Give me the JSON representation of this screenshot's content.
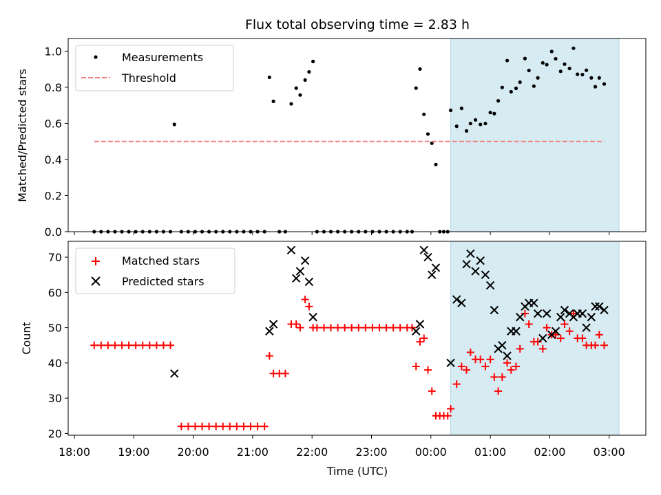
{
  "chart_data": [
    {
      "type": "scatter",
      "title": "Flux total observing time = 2.83 h",
      "xlabel": "",
      "ylabel": "Matched/Predicted stars",
      "xlim": [
        "18:00",
        "03:30"
      ],
      "ylim": [
        0,
        1.07
      ],
      "y_ticks": [
        "0.0",
        "0.2",
        "0.4",
        "0.6",
        "0.8",
        "1.0"
      ],
      "x_ticks": [
        "18:00",
        "19:00",
        "20:00",
        "21:00",
        "22:00",
        "23:00",
        "00:00",
        "01:00",
        "02:00",
        "03:00"
      ],
      "shaded_region": {
        "x_start": "00:20",
        "x_end": "03:10",
        "color": "#add8e6"
      },
      "grid": false,
      "legend": {
        "position": "top-left",
        "entries": [
          {
            "label": "Measurements",
            "marker": "dot",
            "color": "#000000"
          },
          {
            "label": "Threshold",
            "marker": "dashed-line",
            "color": "#f08080"
          }
        ]
      },
      "series": [
        {
          "name": "Measurements",
          "marker": "dot",
          "color": "#000000",
          "points": [
            [
              "18:20",
              0
            ],
            [
              "18:27",
              0
            ],
            [
              "18:34",
              0
            ],
            [
              "18:41",
              0
            ],
            [
              "18:48",
              0
            ],
            [
              "18:55",
              0
            ],
            [
              "19:02",
              0
            ],
            [
              "19:09",
              0
            ],
            [
              "19:16",
              0
            ],
            [
              "19:23",
              0
            ],
            [
              "19:30",
              0
            ],
            [
              "19:37",
              0
            ],
            [
              "19:41",
              0.594
            ],
            [
              "19:48",
              0
            ],
            [
              "19:55",
              0
            ],
            [
              "20:02",
              0
            ],
            [
              "20:09",
              0
            ],
            [
              "20:16",
              0
            ],
            [
              "20:23",
              0
            ],
            [
              "20:30",
              0
            ],
            [
              "20:37",
              0
            ],
            [
              "20:44",
              0
            ],
            [
              "20:51",
              0
            ],
            [
              "20:58",
              0
            ],
            [
              "21:05",
              0
            ],
            [
              "21:12",
              0
            ],
            [
              "21:17",
              0.855
            ],
            [
              "21:21",
              0.722
            ],
            [
              "21:27",
              0
            ],
            [
              "21:33",
              0
            ],
            [
              "21:39",
              0.708
            ],
            [
              "21:44",
              0.795
            ],
            [
              "21:48",
              0.757
            ],
            [
              "21:53",
              0.84
            ],
            [
              "21:57",
              0.885
            ],
            [
              "22:01",
              0.943
            ],
            [
              "22:05",
              0
            ],
            [
              "22:12",
              0
            ],
            [
              "22:19",
              0
            ],
            [
              "22:26",
              0
            ],
            [
              "22:33",
              0
            ],
            [
              "22:40",
              0
            ],
            [
              "22:47",
              0
            ],
            [
              "22:54",
              0
            ],
            [
              "23:01",
              0
            ],
            [
              "23:08",
              0
            ],
            [
              "23:15",
              0
            ],
            [
              "23:22",
              0
            ],
            [
              "23:29",
              0
            ],
            [
              "23:36",
              0
            ],
            [
              "23:41",
              0
            ],
            [
              "23:45",
              0.795
            ],
            [
              "23:49",
              0.901
            ],
            [
              "23:53",
              0.65
            ],
            [
              "23:57",
              0.541
            ],
            [
              "00:01",
              0.49
            ],
            [
              "00:05",
              0.372
            ],
            [
              "00:09",
              0
            ],
            [
              "00:13",
              0
            ],
            [
              "00:17",
              0
            ],
            [
              "00:20",
              0.672
            ],
            [
              "00:26",
              0.584
            ],
            [
              "00:31",
              0.683
            ],
            [
              "00:36",
              0.558
            ],
            [
              "00:40",
              0.599
            ],
            [
              "00:45",
              0.619
            ],
            [
              "00:50",
              0.594
            ],
            [
              "00:55",
              0.599
            ],
            [
              "01:00",
              0.66
            ],
            [
              "01:04",
              0.654
            ],
            [
              "01:08",
              0.725
            ],
            [
              "01:12",
              0.799
            ],
            [
              "01:17",
              0.948
            ],
            [
              "01:21",
              0.775
            ],
            [
              "01:26",
              0.794
            ],
            [
              "01:30",
              0.828
            ],
            [
              "01:35",
              0.959
            ],
            [
              "01:39",
              0.893
            ],
            [
              "01:44",
              0.806
            ],
            [
              "01:48",
              0.852
            ],
            [
              "01:53",
              0.935
            ],
            [
              "01:57",
              0.925
            ],
            [
              "02:02",
              0.998
            ],
            [
              "02:06",
              0.958
            ],
            [
              "02:11",
              0.888
            ],
            [
              "02:15",
              0.928
            ],
            [
              "02:20",
              0.904
            ],
            [
              "02:24",
              1.016
            ],
            [
              "02:28",
              0.872
            ],
            [
              "02:33",
              0.87
            ],
            [
              "02:37",
              0.894
            ],
            [
              "02:42",
              0.852
            ],
            [
              "02:46",
              0.803
            ],
            [
              "02:50",
              0.852
            ],
            [
              "02:55",
              0.818
            ]
          ]
        },
        {
          "name": "Threshold",
          "marker": "dashed-line",
          "color": "#f08080",
          "points": [
            [
              "18:20",
              0.5
            ],
            [
              "02:55",
              0.5
            ]
          ]
        }
      ]
    },
    {
      "type": "scatter",
      "title": "",
      "xlabel": "Time (UTC)",
      "ylabel": "Count",
      "xlim": [
        "18:00",
        "03:30"
      ],
      "ylim": [
        19.5,
        74.5
      ],
      "y_ticks": [
        "20",
        "30",
        "40",
        "50",
        "60",
        "70"
      ],
      "x_ticks": [
        "18:00",
        "19:00",
        "20:00",
        "21:00",
        "22:00",
        "23:00",
        "00:00",
        "01:00",
        "02:00",
        "03:00"
      ],
      "shaded_region": {
        "x_start": "00:20",
        "x_end": "03:10",
        "color": "#add8e6"
      },
      "grid": false,
      "legend": {
        "position": "top-left",
        "entries": [
          {
            "label": "Matched stars",
            "marker": "plus",
            "color": "#ff0000"
          },
          {
            "label": "Predicted stars",
            "marker": "x",
            "color": "#000000"
          }
        ]
      },
      "series": [
        {
          "name": "Matched stars",
          "marker": "plus",
          "color": "#ff0000",
          "points": [
            [
              "18:20",
              45
            ],
            [
              "18:27",
              45
            ],
            [
              "18:34",
              45
            ],
            [
              "18:41",
              45
            ],
            [
              "18:48",
              45
            ],
            [
              "18:55",
              45
            ],
            [
              "19:02",
              45
            ],
            [
              "19:09",
              45
            ],
            [
              "19:16",
              45
            ],
            [
              "19:23",
              45
            ],
            [
              "19:30",
              45
            ],
            [
              "19:37",
              45
            ],
            [
              "19:48",
              22
            ],
            [
              "19:55",
              22
            ],
            [
              "20:02",
              22
            ],
            [
              "20:09",
              22
            ],
            [
              "20:16",
              22
            ],
            [
              "20:23",
              22
            ],
            [
              "20:30",
              22
            ],
            [
              "20:37",
              22
            ],
            [
              "20:44",
              22
            ],
            [
              "20:51",
              22
            ],
            [
              "20:58",
              22
            ],
            [
              "21:05",
              22
            ],
            [
              "21:12",
              22
            ],
            [
              "21:17",
              42
            ],
            [
              "21:21",
              37
            ],
            [
              "21:27",
              37
            ],
            [
              "21:33",
              37
            ],
            [
              "21:39",
              51
            ],
            [
              "21:44",
              51
            ],
            [
              "21:48",
              50
            ],
            [
              "21:53",
              58
            ],
            [
              "21:57",
              56
            ],
            [
              "22:01",
              50
            ],
            [
              "22:05",
              50
            ],
            [
              "22:12",
              50
            ],
            [
              "22:19",
              50
            ],
            [
              "22:26",
              50
            ],
            [
              "22:33",
              50
            ],
            [
              "22:40",
              50
            ],
            [
              "22:47",
              50
            ],
            [
              "22:54",
              50
            ],
            [
              "23:01",
              50
            ],
            [
              "23:08",
              50
            ],
            [
              "23:15",
              50
            ],
            [
              "23:22",
              50
            ],
            [
              "23:29",
              50
            ],
            [
              "23:36",
              50
            ],
            [
              "23:41",
              50
            ],
            [
              "23:45",
              39
            ],
            [
              "23:49",
              46
            ],
            [
              "23:53",
              47
            ],
            [
              "23:57",
              38
            ],
            [
              "00:01",
              32
            ],
            [
              "00:05",
              25
            ],
            [
              "00:09",
              25
            ],
            [
              "00:13",
              25
            ],
            [
              "00:17",
              25
            ],
            [
              "00:20",
              27
            ],
            [
              "00:26",
              34
            ],
            [
              "00:31",
              39
            ],
            [
              "00:36",
              38
            ],
            [
              "00:40",
              43
            ],
            [
              "00:45",
              41
            ],
            [
              "00:50",
              41
            ],
            [
              "00:55",
              39
            ],
            [
              "01:00",
              41
            ],
            [
              "01:04",
              36
            ],
            [
              "01:08",
              32
            ],
            [
              "01:12",
              36
            ],
            [
              "01:17",
              40
            ],
            [
              "01:21",
              38
            ],
            [
              "01:26",
              39
            ],
            [
              "01:30",
              44
            ],
            [
              "01:35",
              54
            ],
            [
              "01:39",
              51
            ],
            [
              "01:44",
              46
            ],
            [
              "01:48",
              46
            ],
            [
              "01:53",
              44
            ],
            [
              "01:57",
              50
            ],
            [
              "02:02",
              48
            ],
            [
              "02:06",
              48
            ],
            [
              "02:11",
              47
            ],
            [
              "02:15",
              51
            ],
            [
              "02:20",
              49
            ],
            [
              "02:24",
              54
            ],
            [
              "02:28",
              47
            ],
            [
              "02:33",
              47
            ],
            [
              "02:37",
              45
            ],
            [
              "02:42",
              45
            ],
            [
              "02:46",
              45
            ],
            [
              "02:50",
              48
            ],
            [
              "02:55",
              45
            ]
          ]
        },
        {
          "name": "Predicted stars",
          "marker": "x",
          "color": "#000000",
          "points": [
            [
              "19:41",
              37
            ],
            [
              "21:17",
              49
            ],
            [
              "21:21",
              51
            ],
            [
              "21:39",
              72
            ],
            [
              "21:44",
              64
            ],
            [
              "21:48",
              66
            ],
            [
              "21:53",
              69
            ],
            [
              "21:57",
              63
            ],
            [
              "22:01",
              53
            ],
            [
              "23:45",
              49
            ],
            [
              "23:49",
              51
            ],
            [
              "23:53",
              72
            ],
            [
              "23:57",
              70
            ],
            [
              "00:01",
              65
            ],
            [
              "00:05",
              67
            ],
            [
              "00:20",
              40
            ],
            [
              "00:26",
              58
            ],
            [
              "00:31",
              57
            ],
            [
              "00:36",
              68
            ],
            [
              "00:40",
              71
            ],
            [
              "00:45",
              66
            ],
            [
              "00:50",
              69
            ],
            [
              "00:55",
              65
            ],
            [
              "01:00",
              62
            ],
            [
              "01:04",
              55
            ],
            [
              "01:08",
              44
            ],
            [
              "01:12",
              45
            ],
            [
              "01:17",
              42
            ],
            [
              "01:21",
              49
            ],
            [
              "01:26",
              49
            ],
            [
              "01:30",
              53
            ],
            [
              "01:35",
              56
            ],
            [
              "01:39",
              57
            ],
            [
              "01:44",
              57
            ],
            [
              "01:48",
              54
            ],
            [
              "01:53",
              47
            ],
            [
              "01:57",
              54
            ],
            [
              "02:02",
              48
            ],
            [
              "02:06",
              49
            ],
            [
              "02:11",
              53
            ],
            [
              "02:15",
              55
            ],
            [
              "02:20",
              54
            ],
            [
              "02:24",
              53
            ],
            [
              "02:28",
              54
            ],
            [
              "02:33",
              54
            ],
            [
              "02:37",
              50
            ],
            [
              "02:42",
              53
            ],
            [
              "02:46",
              56
            ],
            [
              "02:50",
              56
            ],
            [
              "02:55",
              55
            ]
          ]
        }
      ]
    }
  ]
}
